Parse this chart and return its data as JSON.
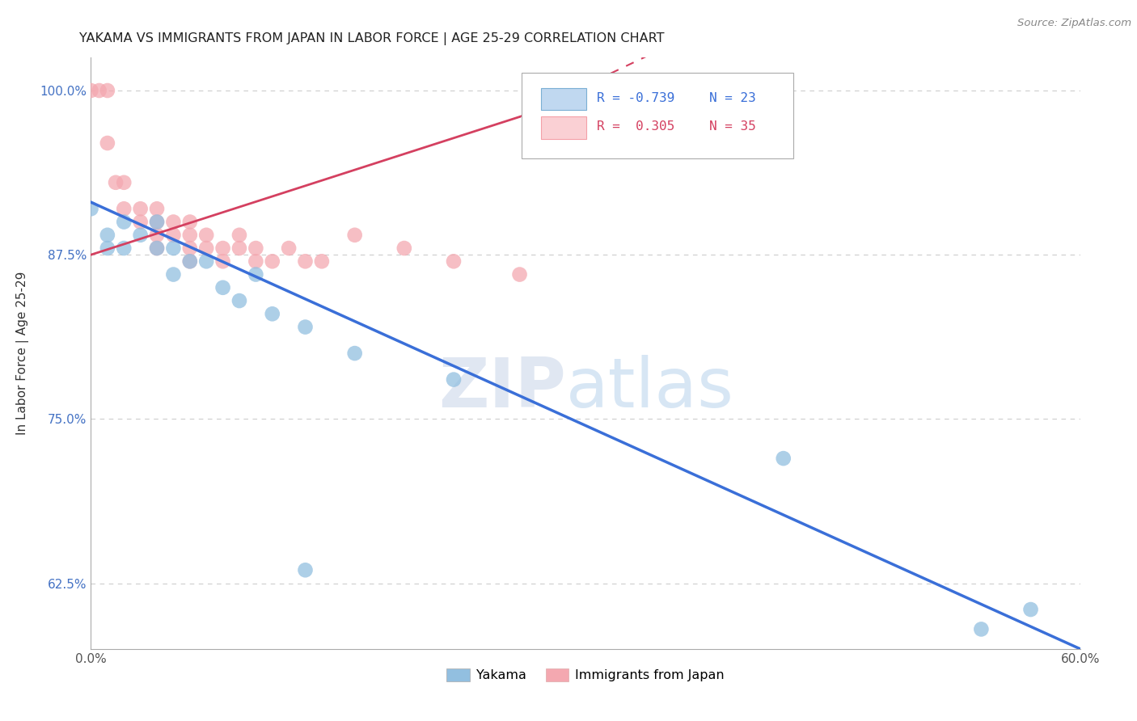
{
  "title": "YAKAMA VS IMMIGRANTS FROM JAPAN IN LABOR FORCE | AGE 25-29 CORRELATION CHART",
  "source": "Source: ZipAtlas.com",
  "ylabel": "In Labor Force | Age 25-29",
  "xlim": [
    0.0,
    0.6
  ],
  "ylim": [
    0.575,
    1.025
  ],
  "xticks": [
    0.0,
    0.1,
    0.2,
    0.3,
    0.4,
    0.5,
    0.6
  ],
  "xticklabels": [
    "0.0%",
    "",
    "",
    "",
    "",
    "",
    "60.0%"
  ],
  "yticks": [
    0.625,
    0.75,
    0.875,
    1.0
  ],
  "yticklabels": [
    "62.5%",
    "75.0%",
    "87.5%",
    "100.0%"
  ],
  "grid_color": "#cccccc",
  "background_color": "#ffffff",
  "yakama_color": "#92bfe0",
  "japan_color": "#f4a8b0",
  "yakama_line_color": "#3a6fd8",
  "japan_line_color": "#d44060",
  "legend_r_yakama": "-0.739",
  "legend_n_yakama": "23",
  "legend_r_japan": "0.305",
  "legend_n_japan": "35",
  "watermark_zip": "ZIP",
  "watermark_atlas": "atlas",
  "watermark_color": "#d0dff0",
  "yakama_points_x": [
    0.0,
    0.01,
    0.01,
    0.02,
    0.02,
    0.03,
    0.04,
    0.04,
    0.05,
    0.05,
    0.06,
    0.07,
    0.08,
    0.09,
    0.1,
    0.11,
    0.13,
    0.16,
    0.22,
    0.42,
    0.54,
    0.57,
    0.13
  ],
  "yakama_points_y": [
    0.91,
    0.89,
    0.88,
    0.9,
    0.88,
    0.89,
    0.9,
    0.88,
    0.88,
    0.86,
    0.87,
    0.87,
    0.85,
    0.84,
    0.86,
    0.83,
    0.82,
    0.8,
    0.78,
    0.72,
    0.59,
    0.605,
    0.635
  ],
  "japan_points_x": [
    0.0,
    0.005,
    0.01,
    0.01,
    0.015,
    0.02,
    0.02,
    0.03,
    0.03,
    0.04,
    0.04,
    0.04,
    0.04,
    0.05,
    0.05,
    0.06,
    0.06,
    0.06,
    0.06,
    0.07,
    0.07,
    0.08,
    0.08,
    0.09,
    0.09,
    0.1,
    0.1,
    0.11,
    0.12,
    0.13,
    0.14,
    0.16,
    0.19,
    0.22,
    0.26
  ],
  "japan_points_y": [
    1.0,
    1.0,
    1.0,
    0.96,
    0.93,
    0.93,
    0.91,
    0.91,
    0.9,
    0.91,
    0.9,
    0.89,
    0.88,
    0.9,
    0.89,
    0.9,
    0.89,
    0.88,
    0.87,
    0.89,
    0.88,
    0.88,
    0.87,
    0.89,
    0.88,
    0.88,
    0.87,
    0.87,
    0.88,
    0.87,
    0.87,
    0.89,
    0.88,
    0.87,
    0.86
  ],
  "yakama_line_x0": 0.0,
  "yakama_line_x1": 0.6,
  "yakama_line_y0": 0.915,
  "yakama_line_y1": 0.575,
  "japan_line_x0": 0.0,
  "japan_line_x1": 0.26,
  "japan_line_y0": 0.875,
  "japan_line_y1": 0.98
}
